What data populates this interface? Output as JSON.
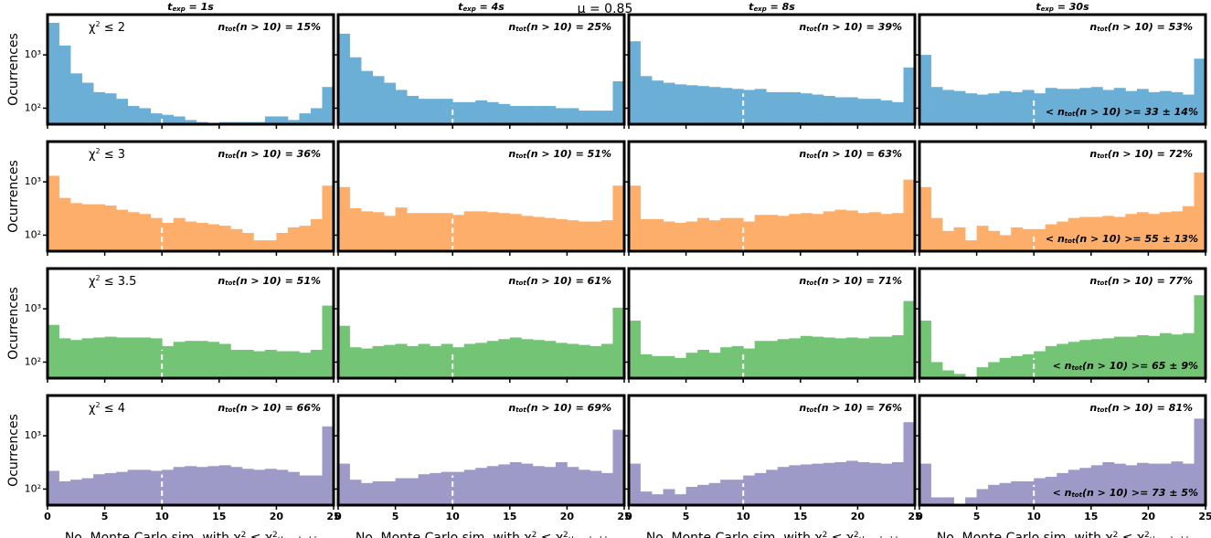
{
  "title": "μ = 0.85",
  "column_titles": [
    [
      {
        "t": "t"
      },
      {
        "t": "exp",
        "s": "sub"
      },
      {
        "t": " = 1"
      },
      {
        "t": "s"
      }
    ],
    [
      {
        "t": "t"
      },
      {
        "t": "exp",
        "s": "sub"
      },
      {
        "t": " = 4"
      },
      {
        "t": "s"
      }
    ],
    [
      {
        "t": "t"
      },
      {
        "t": "exp",
        "s": "sub"
      },
      {
        "t": " = 8"
      },
      {
        "t": "s"
      }
    ],
    [
      {
        "t": "t"
      },
      {
        "t": "exp",
        "s": "sub"
      },
      {
        "t": " = 30"
      },
      {
        "t": "s"
      }
    ]
  ],
  "axes": {
    "xlim": [
      0,
      25
    ],
    "xticks": [
      0,
      5,
      10,
      15,
      20,
      25
    ],
    "ylim": [
      50,
      5700
    ],
    "log_y": true,
    "yticks": [
      {
        "value": 100,
        "label": "10²"
      },
      {
        "value": 1000,
        "label": "10³"
      }
    ],
    "threshold": 10,
    "ylabel": "Ocurrences",
    "xlabel": [
      {
        "t": "No. Monte Carlo sim. with "
      },
      {
        "t": "χ"
      },
      {
        "t": "2",
        "s": "sup"
      },
      {
        "t": " ≤ "
      },
      {
        "t": "χ"
      },
      {
        "t": "2",
        "s": "sup"
      },
      {
        "t": "threshold",
        "s": "sub"
      }
    ]
  },
  "chart_data": [
    {
      "type": "histogram",
      "color": "#6baed6",
      "label": [
        {
          "t": "χ"
        },
        {
          "t": "2",
          "s": "sup"
        },
        {
          "t": " ≤ 2"
        }
      ],
      "annotation": [
        {
          "t": "n"
        },
        {
          "t": "tot",
          "s": "sub"
        },
        {
          "t": "(n > 10) = 15%"
        }
      ],
      "bins": [
        0,
        1,
        2,
        3,
        4,
        5,
        6,
        7,
        8,
        9,
        10,
        11,
        12,
        13,
        14,
        15,
        16,
        17,
        18,
        19,
        20,
        21,
        22,
        23,
        24,
        25
      ],
      "counts": [
        4000,
        1500,
        450,
        300,
        200,
        190,
        150,
        110,
        100,
        80,
        75,
        70,
        60,
        55,
        52,
        55,
        55,
        55,
        55,
        70,
        70,
        60,
        80,
        100,
        250
      ]
    },
    {
      "type": "histogram",
      "color": "#6baed6",
      "annotation": [
        {
          "t": "n"
        },
        {
          "t": "tot",
          "s": "sub"
        },
        {
          "t": "(n > 10) = 25%"
        }
      ],
      "bins": [
        0,
        1,
        2,
        3,
        4,
        5,
        6,
        7,
        8,
        9,
        10,
        11,
        12,
        13,
        14,
        15,
        16,
        17,
        18,
        19,
        20,
        21,
        22,
        23,
        24,
        25
      ],
      "counts": [
        2500,
        900,
        500,
        400,
        300,
        220,
        170,
        150,
        150,
        150,
        130,
        130,
        140,
        130,
        120,
        110,
        110,
        110,
        110,
        100,
        100,
        90,
        90,
        90,
        320
      ]
    },
    {
      "type": "histogram",
      "color": "#6baed6",
      "annotation": [
        {
          "t": "n"
        },
        {
          "t": "tot",
          "s": "sub"
        },
        {
          "t": "(n > 10) = 39%"
        }
      ],
      "bins": [
        0,
        1,
        2,
        3,
        4,
        5,
        6,
        7,
        8,
        9,
        10,
        11,
        12,
        13,
        14,
        15,
        16,
        17,
        18,
        19,
        20,
        21,
        22,
        23,
        24,
        25
      ],
      "counts": [
        1800,
        400,
        330,
        300,
        280,
        270,
        260,
        250,
        240,
        230,
        220,
        230,
        200,
        200,
        200,
        190,
        180,
        170,
        160,
        160,
        150,
        150,
        140,
        130,
        580
      ]
    },
    {
      "type": "histogram",
      "color": "#6baed6",
      "annotation": [
        {
          "t": "n"
        },
        {
          "t": "tot",
          "s": "sub"
        },
        {
          "t": "(n > 10) = 53%"
        }
      ],
      "summary": [
        {
          "t": "< n"
        },
        {
          "t": "tot",
          "s": "sub"
        },
        {
          "t": "(n > 10) >= 33 ± 14%"
        }
      ],
      "bins": [
        0,
        1,
        2,
        3,
        4,
        5,
        6,
        7,
        8,
        9,
        10,
        11,
        12,
        13,
        14,
        15,
        16,
        17,
        18,
        19,
        20,
        21,
        22,
        23,
        24,
        25
      ],
      "counts": [
        1000,
        250,
        220,
        210,
        190,
        180,
        190,
        210,
        200,
        220,
        190,
        240,
        230,
        230,
        240,
        250,
        220,
        240,
        210,
        230,
        200,
        210,
        200,
        180,
        850
      ]
    },
    {
      "type": "histogram",
      "color": "#fdae6b",
      "label": [
        {
          "t": "χ"
        },
        {
          "t": "2",
          "s": "sup"
        },
        {
          "t": " ≤ 3"
        }
      ],
      "annotation": [
        {
          "t": "n"
        },
        {
          "t": "tot",
          "s": "sub"
        },
        {
          "t": "(n > 10) = 36%"
        }
      ],
      "bins": [
        0,
        1,
        2,
        3,
        4,
        5,
        6,
        7,
        8,
        9,
        10,
        11,
        12,
        13,
        14,
        15,
        16,
        17,
        18,
        19,
        20,
        21,
        22,
        23,
        24,
        25
      ],
      "counts": [
        1300,
        500,
        400,
        380,
        380,
        360,
        300,
        270,
        250,
        210,
        170,
        210,
        180,
        170,
        160,
        150,
        130,
        110,
        80,
        80,
        110,
        140,
        150,
        200,
        850
      ]
    },
    {
      "type": "histogram",
      "color": "#fdae6b",
      "annotation": [
        {
          "t": "n"
        },
        {
          "t": "tot",
          "s": "sub"
        },
        {
          "t": "(n > 10) = 51%"
        }
      ],
      "bins": [
        0,
        1,
        2,
        3,
        4,
        5,
        6,
        7,
        8,
        9,
        10,
        11,
        12,
        13,
        14,
        15,
        16,
        17,
        18,
        19,
        20,
        21,
        22,
        23,
        24,
        25
      ],
      "counts": [
        800,
        320,
        280,
        270,
        230,
        330,
        260,
        260,
        260,
        260,
        240,
        280,
        280,
        270,
        260,
        250,
        230,
        220,
        210,
        200,
        190,
        180,
        180,
        190,
        850
      ]
    },
    {
      "type": "histogram",
      "color": "#fdae6b",
      "annotation": [
        {
          "t": "n"
        },
        {
          "t": "tot",
          "s": "sub"
        },
        {
          "t": "(n > 10) = 63%"
        }
      ],
      "bins": [
        0,
        1,
        2,
        3,
        4,
        5,
        6,
        7,
        8,
        9,
        10,
        11,
        12,
        13,
        14,
        15,
        16,
        17,
        18,
        19,
        20,
        21,
        22,
        23,
        24,
        25
      ],
      "counts": [
        850,
        200,
        200,
        180,
        170,
        180,
        210,
        190,
        210,
        210,
        180,
        240,
        240,
        230,
        250,
        260,
        250,
        280,
        300,
        290,
        260,
        270,
        250,
        260,
        1100
      ]
    },
    {
      "type": "histogram",
      "color": "#fdae6b",
      "annotation": [
        {
          "t": "n"
        },
        {
          "t": "tot",
          "s": "sub"
        },
        {
          "t": "(n > 10) = 72%"
        }
      ],
      "summary": [
        {
          "t": "< n"
        },
        {
          "t": "tot",
          "s": "sub"
        },
        {
          "t": "(n > 10) >= 55 ± 13%"
        }
      ],
      "bins": [
        0,
        1,
        2,
        3,
        4,
        5,
        6,
        7,
        8,
        9,
        10,
        11,
        12,
        13,
        14,
        15,
        16,
        17,
        18,
        19,
        20,
        21,
        22,
        23,
        24,
        25
      ],
      "counts": [
        800,
        210,
        120,
        140,
        80,
        150,
        120,
        100,
        140,
        130,
        130,
        160,
        180,
        210,
        220,
        220,
        230,
        220,
        250,
        270,
        250,
        270,
        280,
        350,
        1500
      ]
    },
    {
      "type": "histogram",
      "color": "#74c476",
      "label": [
        {
          "t": "χ"
        },
        {
          "t": "2",
          "s": "sup"
        },
        {
          "t": " ≤ 3.5"
        }
      ],
      "annotation": [
        {
          "t": "n"
        },
        {
          "t": "tot",
          "s": "sub"
        },
        {
          "t": "(n > 10) = 51%"
        }
      ],
      "bins": [
        0,
        1,
        2,
        3,
        4,
        5,
        6,
        7,
        8,
        9,
        10,
        11,
        12,
        13,
        14,
        15,
        16,
        17,
        18,
        19,
        20,
        21,
        22,
        23,
        24,
        25
      ],
      "counts": [
        500,
        280,
        260,
        280,
        290,
        300,
        290,
        290,
        290,
        280,
        200,
        240,
        250,
        250,
        240,
        220,
        170,
        170,
        160,
        170,
        160,
        160,
        150,
        170,
        1150
      ]
    },
    {
      "type": "histogram",
      "color": "#74c476",
      "annotation": [
        {
          "t": "n"
        },
        {
          "t": "tot",
          "s": "sub"
        },
        {
          "t": "(n > 10) = 61%"
        }
      ],
      "bins": [
        0,
        1,
        2,
        3,
        4,
        5,
        6,
        7,
        8,
        9,
        10,
        11,
        12,
        13,
        14,
        15,
        16,
        17,
        18,
        19,
        20,
        21,
        22,
        23,
        24,
        25
      ],
      "counts": [
        480,
        190,
        180,
        200,
        210,
        220,
        200,
        220,
        200,
        220,
        190,
        220,
        230,
        250,
        270,
        290,
        270,
        260,
        250,
        230,
        220,
        210,
        200,
        220,
        1050
      ]
    },
    {
      "type": "histogram",
      "color": "#74c476",
      "annotation": [
        {
          "t": "n"
        },
        {
          "t": "tot",
          "s": "sub"
        },
        {
          "t": "(n > 10) = 71%"
        }
      ],
      "bins": [
        0,
        1,
        2,
        3,
        4,
        5,
        6,
        7,
        8,
        9,
        10,
        11,
        12,
        13,
        14,
        15,
        16,
        17,
        18,
        19,
        20,
        21,
        22,
        23,
        24,
        25
      ],
      "counts": [
        600,
        140,
        130,
        130,
        120,
        150,
        170,
        150,
        190,
        200,
        180,
        250,
        250,
        270,
        280,
        310,
        300,
        290,
        280,
        290,
        280,
        300,
        300,
        320,
        1400
      ]
    },
    {
      "type": "histogram",
      "color": "#74c476",
      "annotation": [
        {
          "t": "n"
        },
        {
          "t": "tot",
          "s": "sub"
        },
        {
          "t": "(n > 10) = 77%"
        }
      ],
      "summary": [
        {
          "t": "< n"
        },
        {
          "t": "tot",
          "s": "sub"
        },
        {
          "t": "(n > 10) >= 65 ± 9%"
        }
      ],
      "bins": [
        0,
        1,
        2,
        3,
        4,
        5,
        6,
        7,
        8,
        9,
        10,
        11,
        12,
        13,
        14,
        15,
        16,
        17,
        18,
        19,
        20,
        21,
        22,
        23,
        24,
        25
      ],
      "counts": [
        600,
        100,
        70,
        60,
        50,
        80,
        100,
        120,
        130,
        140,
        160,
        200,
        220,
        240,
        260,
        270,
        280,
        300,
        300,
        320,
        310,
        350,
        330,
        350,
        1800
      ]
    },
    {
      "type": "histogram",
      "color": "#9e9ac8",
      "label": [
        {
          "t": "χ"
        },
        {
          "t": "2",
          "s": "sup"
        },
        {
          "t": " ≤ 4"
        }
      ],
      "annotation": [
        {
          "t": "n"
        },
        {
          "t": "tot",
          "s": "sub"
        },
        {
          "t": "(n > 10) = 66%"
        }
      ],
      "bins": [
        0,
        1,
        2,
        3,
        4,
        5,
        6,
        7,
        8,
        9,
        10,
        11,
        12,
        13,
        14,
        15,
        16,
        17,
        18,
        19,
        20,
        21,
        22,
        23,
        24,
        25
      ],
      "counts": [
        220,
        140,
        150,
        160,
        190,
        200,
        210,
        230,
        230,
        220,
        230,
        260,
        270,
        260,
        270,
        280,
        260,
        240,
        230,
        240,
        230,
        210,
        180,
        180,
        1500
      ]
    },
    {
      "type": "histogram",
      "color": "#9e9ac8",
      "annotation": [
        {
          "t": "n"
        },
        {
          "t": "tot",
          "s": "sub"
        },
        {
          "t": "(n > 10) = 69%"
        }
      ],
      "bins": [
        0,
        1,
        2,
        3,
        4,
        5,
        6,
        7,
        8,
        9,
        10,
        11,
        12,
        13,
        14,
        15,
        16,
        17,
        18,
        19,
        20,
        21,
        22,
        23,
        24,
        25
      ],
      "counts": [
        300,
        150,
        130,
        140,
        140,
        160,
        160,
        190,
        200,
        210,
        210,
        230,
        250,
        270,
        290,
        320,
        300,
        270,
        260,
        320,
        260,
        230,
        220,
        200,
        1300
      ]
    },
    {
      "type": "histogram",
      "color": "#9e9ac8",
      "annotation": [
        {
          "t": "n"
        },
        {
          "t": "tot",
          "s": "sub"
        },
        {
          "t": "(n > 10) = 76%"
        }
      ],
      "bins": [
        0,
        1,
        2,
        3,
        4,
        5,
        6,
        7,
        8,
        9,
        10,
        11,
        12,
        13,
        14,
        15,
        16,
        17,
        18,
        19,
        20,
        21,
        22,
        23,
        24,
        25
      ],
      "counts": [
        300,
        90,
        80,
        100,
        80,
        110,
        120,
        130,
        150,
        150,
        180,
        200,
        230,
        260,
        280,
        290,
        300,
        310,
        320,
        340,
        320,
        310,
        300,
        320,
        1800
      ]
    },
    {
      "type": "histogram",
      "color": "#9e9ac8",
      "annotation": [
        {
          "t": "n"
        },
        {
          "t": "tot",
          "s": "sub"
        },
        {
          "t": "(n > 10) = 81%"
        }
      ],
      "summary": [
        {
          "t": "< n"
        },
        {
          "t": "tot",
          "s": "sub"
        },
        {
          "t": "(n > 10) >= 73 ± 5%"
        }
      ],
      "bins": [
        0,
        1,
        2,
        3,
        4,
        5,
        6,
        7,
        8,
        9,
        10,
        11,
        12,
        13,
        14,
        15,
        16,
        17,
        18,
        19,
        20,
        21,
        22,
        23,
        24,
        25
      ],
      "counts": [
        300,
        70,
        70,
        50,
        70,
        100,
        120,
        130,
        140,
        140,
        160,
        170,
        200,
        230,
        250,
        280,
        320,
        300,
        280,
        310,
        300,
        300,
        330,
        300,
        2100
      ]
    }
  ]
}
